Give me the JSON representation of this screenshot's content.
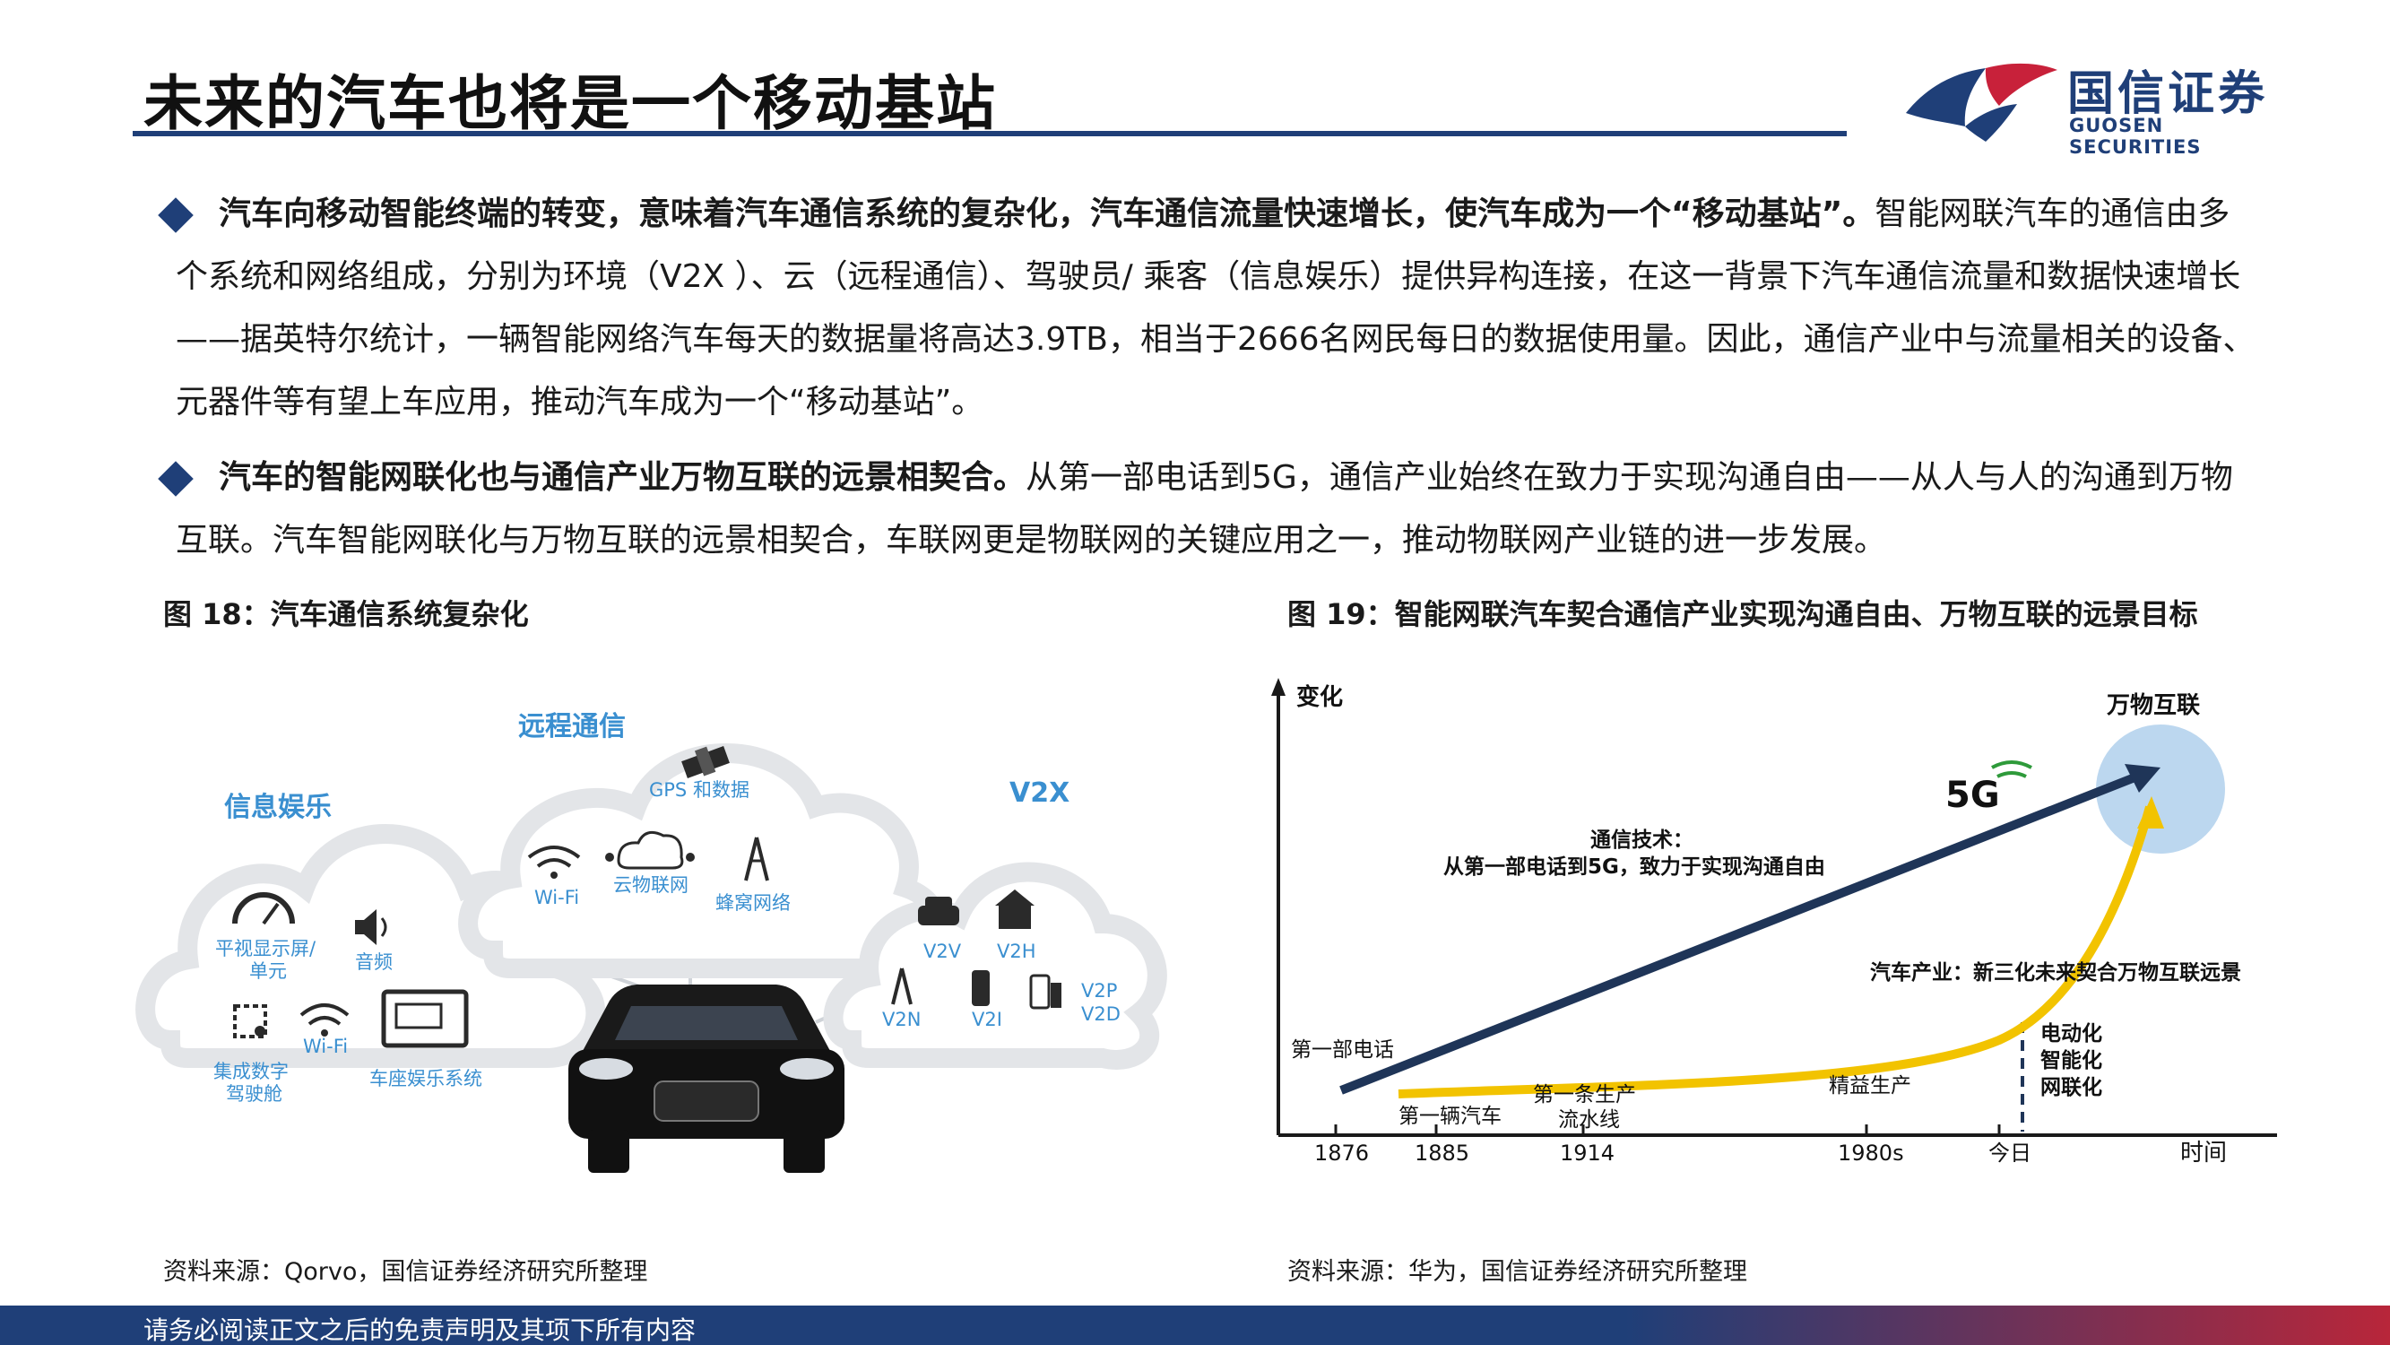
{
  "header": {
    "title": "未来的汽车也将是一个移动基站",
    "logo_cn": "国信证券",
    "logo_en": "GUOSEN SECURITIES"
  },
  "body": {
    "p1_bold": "汽车向移动智能终端的转变，意味着汽车通信系统的复杂化，汽车通信流量快速增长，使汽车成为一个“移动基站”。",
    "p1_rest": "智能网联汽车的通信由多个系统和网络组成，分别为环境（V2X ）、云（远程通信）、驾驶员/ 乘客（信息娱乐）提供异构连接，在这一背景下汽车通信流量和数据快速增长——据英特尔统计，一辆智能网络汽车每天的数据量将高达3.9TB，相当于2666名网民每日的数据使用量。因此，通信产业中与流量相关的设备、元器件等有望上车应用，推动汽车成为一个“移动基站”。",
    "p2_bold": "汽车的智能网联化也与通信产业万物互联的远景相契合。",
    "p2_rest": "从第一部电话到5G，通信产业始终在致力于实现沟通自由——从人与人的沟通到万物互联。汽车智能网联化与万物互联的远景相契合，车联网更是物联网的关键应用之一，推动物联网产业链的进一步发展。"
  },
  "figure18": {
    "caption": "图 18：汽车通信系统复杂化",
    "source": "资料来源：Qorvo，国信证券经济研究所整理",
    "clouds": {
      "infotainment": {
        "title": "信息娱乐",
        "items": [
          "平视显示屏/",
          "单元",
          "音频",
          "集成数字",
          "驾驶舱",
          "Wi-Fi",
          "车座娱乐系统"
        ]
      },
      "telematics": {
        "title": "远程通信",
        "items": [
          "GPS 和数据",
          "Wi-Fi",
          "云物联网",
          "蜂窝网络"
        ]
      },
      "v2x": {
        "title": "V2X",
        "items": [
          "V2V",
          "V2H",
          "V2N",
          "V2I",
          "V2P",
          "V2D"
        ]
      }
    },
    "colors": {
      "cloud_border": "#e3e5e8",
      "accent": "#3a8fd0"
    }
  },
  "figure19": {
    "caption": "图 19：智能网联汽车契合通信产业实现沟通自由、万物互联的远景目标",
    "source": "资料来源：华为，国信证券经济研究所整理",
    "y_axis_label": "变化",
    "x_axis_label": "时间",
    "x_ticks": [
      "1876",
      "1885",
      "1914",
      "1980s",
      "今日"
    ],
    "labels": {
      "iot": "万物互联",
      "fiveg": "5G",
      "comm_title": "通信技术：",
      "comm_desc": "从第一部电话到5G，致力于实现沟通自由",
      "auto": "汽车产业：新三化未来契合万物互联远景",
      "first_phone": "第一部电话",
      "first_car": "第一辆汽车",
      "assembly_1": "第一条生产",
      "assembly_2": "流水线",
      "lean": "精益生产",
      "trend_1": "电动化",
      "trend_2": "智能化",
      "trend_3": "网联化"
    },
    "colors": {
      "comm_arrow": "#1f3558",
      "auto_curve": "#f2c300",
      "iot_circle": "#bcd7ef"
    }
  },
  "footer": {
    "disclaimer": "请务必阅读正文之后的免责声明及其项下所有内容"
  }
}
